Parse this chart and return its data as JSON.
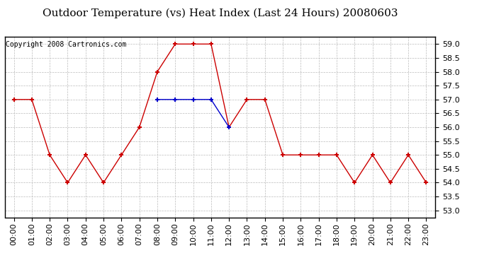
{
  "title": "Outdoor Temperature (vs) Heat Index (Last 24 Hours) 20080603",
  "copyright_text": "Copyright 2008 Cartronics.com",
  "hours": [
    "00:00",
    "01:00",
    "02:00",
    "03:00",
    "04:00",
    "05:00",
    "06:00",
    "07:00",
    "08:00",
    "09:00",
    "10:00",
    "11:00",
    "12:00",
    "13:00",
    "14:00",
    "15:00",
    "16:00",
    "17:00",
    "18:00",
    "19:00",
    "20:00",
    "21:00",
    "22:00",
    "23:00"
  ],
  "temp": [
    57.0,
    57.0,
    55.0,
    54.0,
    55.0,
    54.0,
    55.0,
    56.0,
    58.0,
    59.0,
    59.0,
    59.0,
    56.0,
    57.0,
    57.0,
    55.0,
    55.0,
    55.0,
    55.0,
    54.0,
    55.0,
    54.0,
    55.0,
    54.0
  ],
  "heat_index": [
    null,
    null,
    null,
    null,
    null,
    null,
    null,
    null,
    57.0,
    57.0,
    57.0,
    57.0,
    56.0,
    null,
    null,
    null,
    null,
    null,
    null,
    null,
    null,
    null,
    null,
    null
  ],
  "temp_color": "#cc0000",
  "heat_color": "#0000cc",
  "ylim_min": 53.0,
  "ylim_max": 59.0,
  "ytick_step": 0.5,
  "background_color": "#ffffff",
  "plot_bg_color": "#ffffff",
  "grid_color": "#bbbbbb",
  "title_fontsize": 11,
  "copyright_fontsize": 7,
  "tick_fontsize": 8,
  "marker": "+",
  "markersize": 5,
  "linewidth": 1.0
}
